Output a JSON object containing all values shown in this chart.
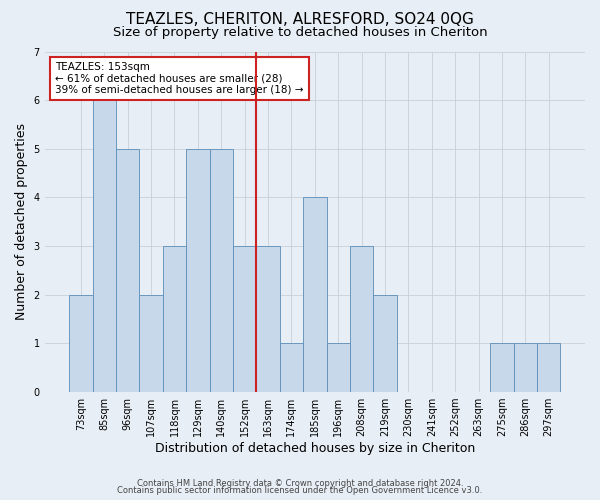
{
  "title1": "TEAZLES, CHERITON, ALRESFORD, SO24 0QG",
  "title2": "Size of property relative to detached houses in Cheriton",
  "xlabel": "Distribution of detached houses by size in Cheriton",
  "ylabel": "Number of detached properties",
  "categories": [
    "73sqm",
    "85sqm",
    "96sqm",
    "107sqm",
    "118sqm",
    "129sqm",
    "140sqm",
    "152sqm",
    "163sqm",
    "174sqm",
    "185sqm",
    "196sqm",
    "208sqm",
    "219sqm",
    "230sqm",
    "241sqm",
    "252sqm",
    "263sqm",
    "275sqm",
    "286sqm",
    "297sqm"
  ],
  "values": [
    2,
    6,
    5,
    2,
    3,
    5,
    5,
    3,
    3,
    1,
    4,
    1,
    3,
    2,
    0,
    0,
    0,
    0,
    1,
    1,
    1
  ],
  "bar_color": "#c8d8eb",
  "bar_edge_color": "#5b8db8",
  "grid_color": "#c8cfd8",
  "background_color": "#e8eef5",
  "vline_color": "#cc2222",
  "annotation_text": "TEAZLES: 153sqm\n← 61% of detached houses are smaller (28)\n39% of semi-detached houses are larger (18) →",
  "annotation_box_color": "#ffffff",
  "annotation_box_edge": "#cc2222",
  "footer1": "Contains HM Land Registry data © Crown copyright and database right 2024.",
  "footer2": "Contains public sector information licensed under the Open Government Licence v3.0.",
  "ylim": [
    0,
    7
  ],
  "title1_fontsize": 11,
  "title2_fontsize": 9.5,
  "xlabel_fontsize": 9,
  "ylabel_fontsize": 9,
  "tick_fontsize": 7,
  "footer_fontsize": 6
}
